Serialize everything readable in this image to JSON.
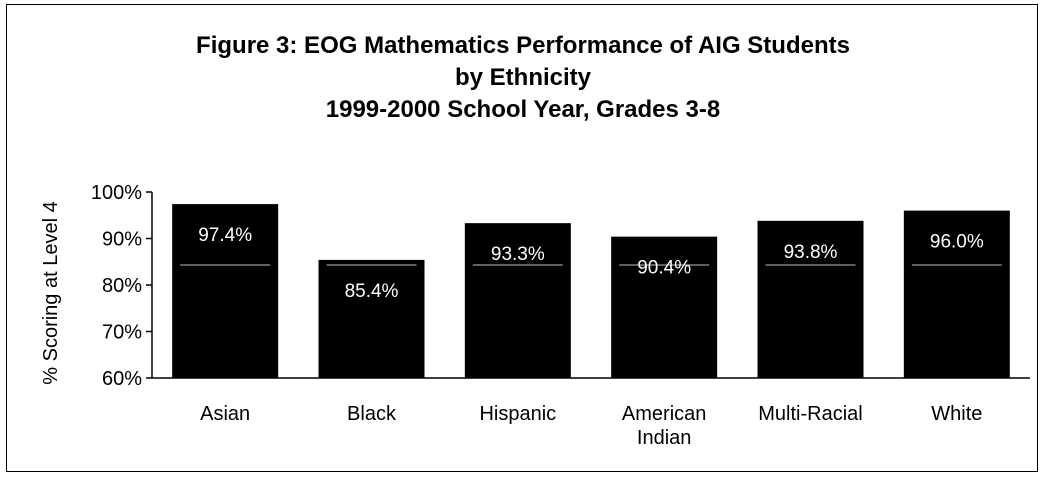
{
  "chart_data": {
    "type": "bar",
    "title_lines": [
      "Figure 3:  EOG Mathematics Performance of AIG Students",
      "by Ethnicity",
      "1999-2000 School Year, Grades 3-8"
    ],
    "xlabel": "",
    "ylabel": "% Scoring at Level 4",
    "categories": [
      [
        "Asian"
      ],
      [
        "Black"
      ],
      [
        "Hispanic"
      ],
      [
        "American",
        "Indian"
      ],
      [
        "Multi-Racial"
      ],
      [
        "White"
      ]
    ],
    "values": [
      97.4,
      85.4,
      93.3,
      90.4,
      93.8,
      96.0
    ],
    "data_labels": [
      "97.4%",
      "85.4%",
      "93.3%",
      "90.4%",
      "93.8%",
      "96.0%"
    ],
    "ylim": [
      60,
      100
    ],
    "yticks": [
      60,
      70,
      80,
      90,
      100
    ],
    "ytick_labels": [
      "60%",
      "70%",
      "80%",
      "90%",
      "100%"
    ],
    "bar_color": "#000000",
    "label_color": "#ffffff",
    "grid": false,
    "legend": "none"
  }
}
